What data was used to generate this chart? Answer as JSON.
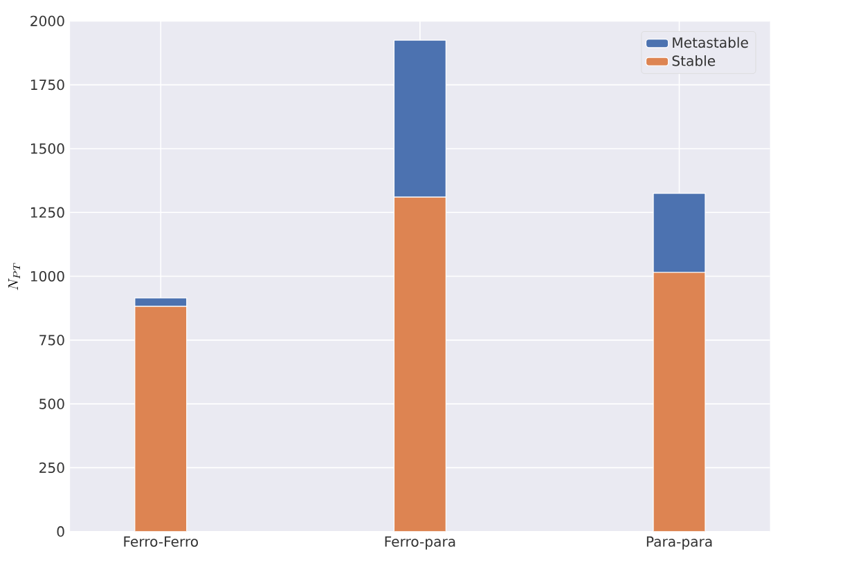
{
  "chart_data": {
    "type": "bar",
    "stacked": true,
    "ylabel": "N_{PT}",
    "categories": [
      "Ferro-Ferro",
      "Ferro-para",
      "Para-para"
    ],
    "series": [
      {
        "name": "Stable",
        "color": "#dd8452",
        "values": [
          882,
          1310,
          1015
        ]
      },
      {
        "name": "Metastable",
        "color": "#4c72b0",
        "values": [
          33,
          615,
          310
        ]
      }
    ],
    "ylim": [
      0,
      2000
    ],
    "yticks": [
      0,
      250,
      500,
      750,
      1000,
      1250,
      1500,
      1750,
      2000
    ],
    "grid": true,
    "legend": "top right"
  }
}
